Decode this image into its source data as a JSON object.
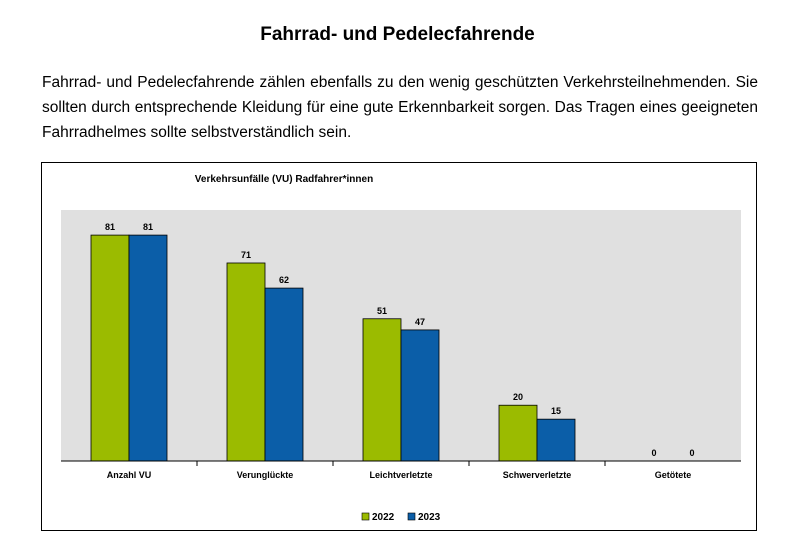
{
  "page": {
    "title": "Fahrrad- und Pedelecfahrende",
    "intro": "Fahrrad- und Pedelecfahrende zählen ebenfalls zu den wenig geschützten Verkehrsteilnehmenden. Sie sollten durch entsprechende Kleidung für eine gute Erkennbarkeit sorgen. Das Tragen eines geeigneten Fahrradhelmes sollte selbstverständlich sein."
  },
  "chart_data": {
    "type": "bar",
    "title": "Verkehrsunfälle (VU) Radfahrer*innen",
    "categories": [
      "Anzahl VU",
      "Verunglückte",
      "Leichtverletzte",
      "Schwerverletzte",
      "Getötete"
    ],
    "series": [
      {
        "name": "2022",
        "values": [
          81,
          71,
          51,
          20,
          0
        ],
        "color": "#9bbb00"
      },
      {
        "name": "2023",
        "values": [
          81,
          62,
          47,
          15,
          0
        ],
        "color": "#0b5ea8"
      }
    ],
    "ylim": [
      0,
      90
    ],
    "grid": false,
    "plot_background": "#e0e0e0",
    "legend_position": "bottom-center",
    "data_labels": true
  }
}
